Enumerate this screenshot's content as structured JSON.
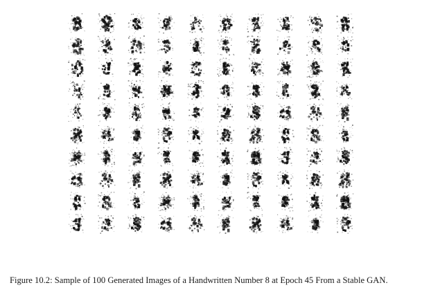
{
  "figure": {
    "label": "Figure 10.2:",
    "caption_text": "Sample of 100 Generated Images of a Handwritten Number 8 at Epoch 45 From a Stable GAN.",
    "grid_rows": 10,
    "grid_cols": 10,
    "ink_color": "#111111",
    "background_color": "#ffffff"
  }
}
